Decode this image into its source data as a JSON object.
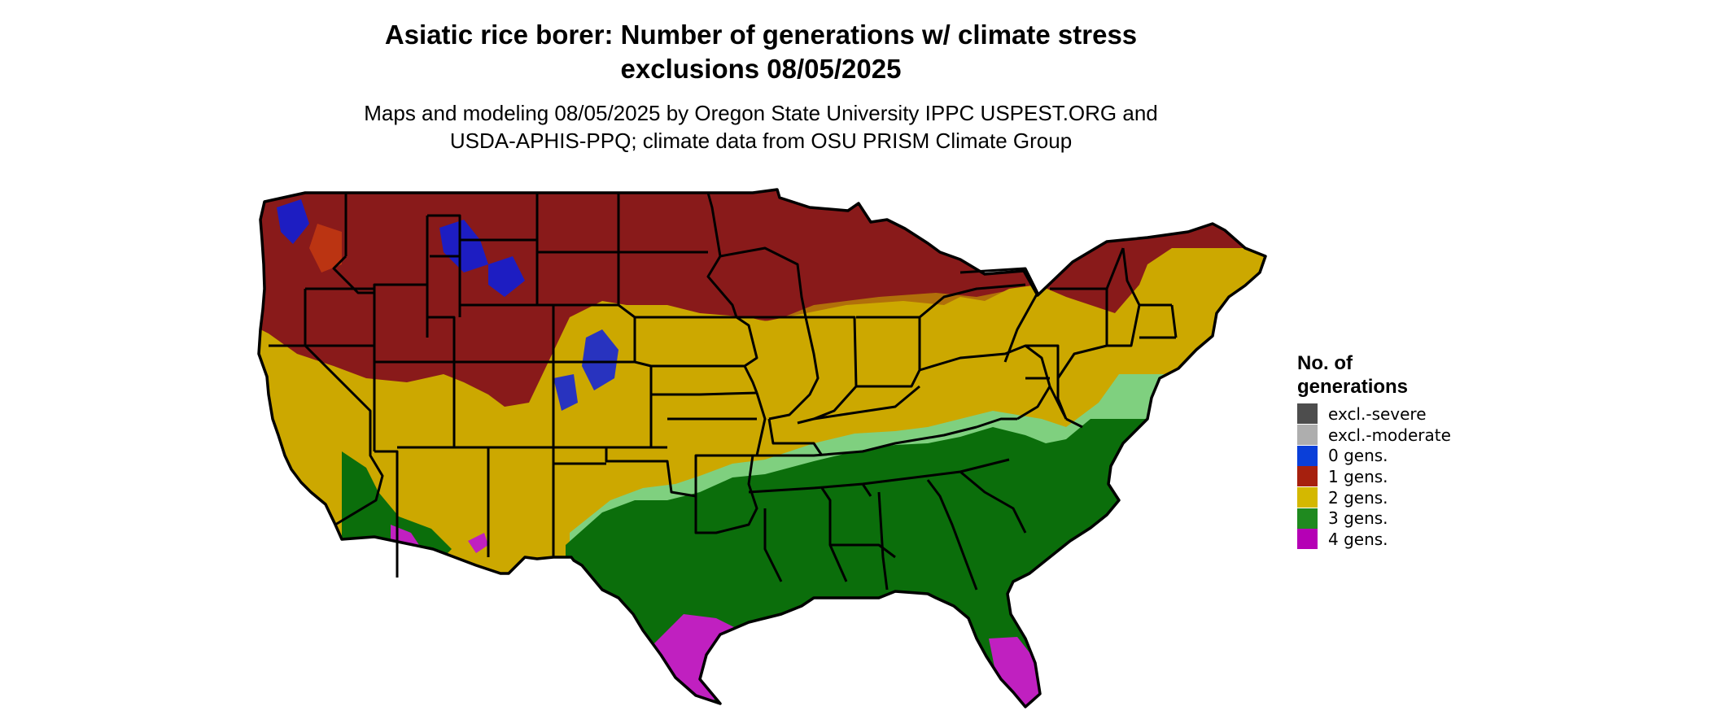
{
  "title_line1": "Asiatic rice borer: Number of generations w/ climate stress",
  "title_line2": "exclusions 08/05/2025",
  "subtitle_line1": "Maps and modeling 08/05/2025 by Oregon State University IPPC USPEST.ORG and",
  "subtitle_line2": "USDA-APHIS-PPQ; climate data from OSU PRISM Climate Group",
  "legend": {
    "title_line1": "No. of",
    "title_line2": "generations",
    "items": [
      {
        "label": "excl.-severe",
        "color": "#4d4d4d"
      },
      {
        "label": "excl.-moderate",
        "color": "#aeaeae"
      },
      {
        "label": "0 gens.",
        "color": "#0a3fd9"
      },
      {
        "label": "1 gens.",
        "color": "#a6200e"
      },
      {
        "label": "2 gens.",
        "color": "#d4b800"
      },
      {
        "label": "3 gens.",
        "color": "#1f8a1f"
      },
      {
        "label": "4 gens.",
        "color": "#b500b5"
      }
    ]
  },
  "map_colors": {
    "one_gen_dark": "#891a1a",
    "two_gens": "#cca800",
    "three_gens_dark": "#0b6e0b",
    "three_gens_light": "#7fd07f",
    "four_gens": "#c020c0",
    "zero_gens": "#0a1ee0",
    "one_gen_bright": "#d04010",
    "state_border": "#000000"
  }
}
